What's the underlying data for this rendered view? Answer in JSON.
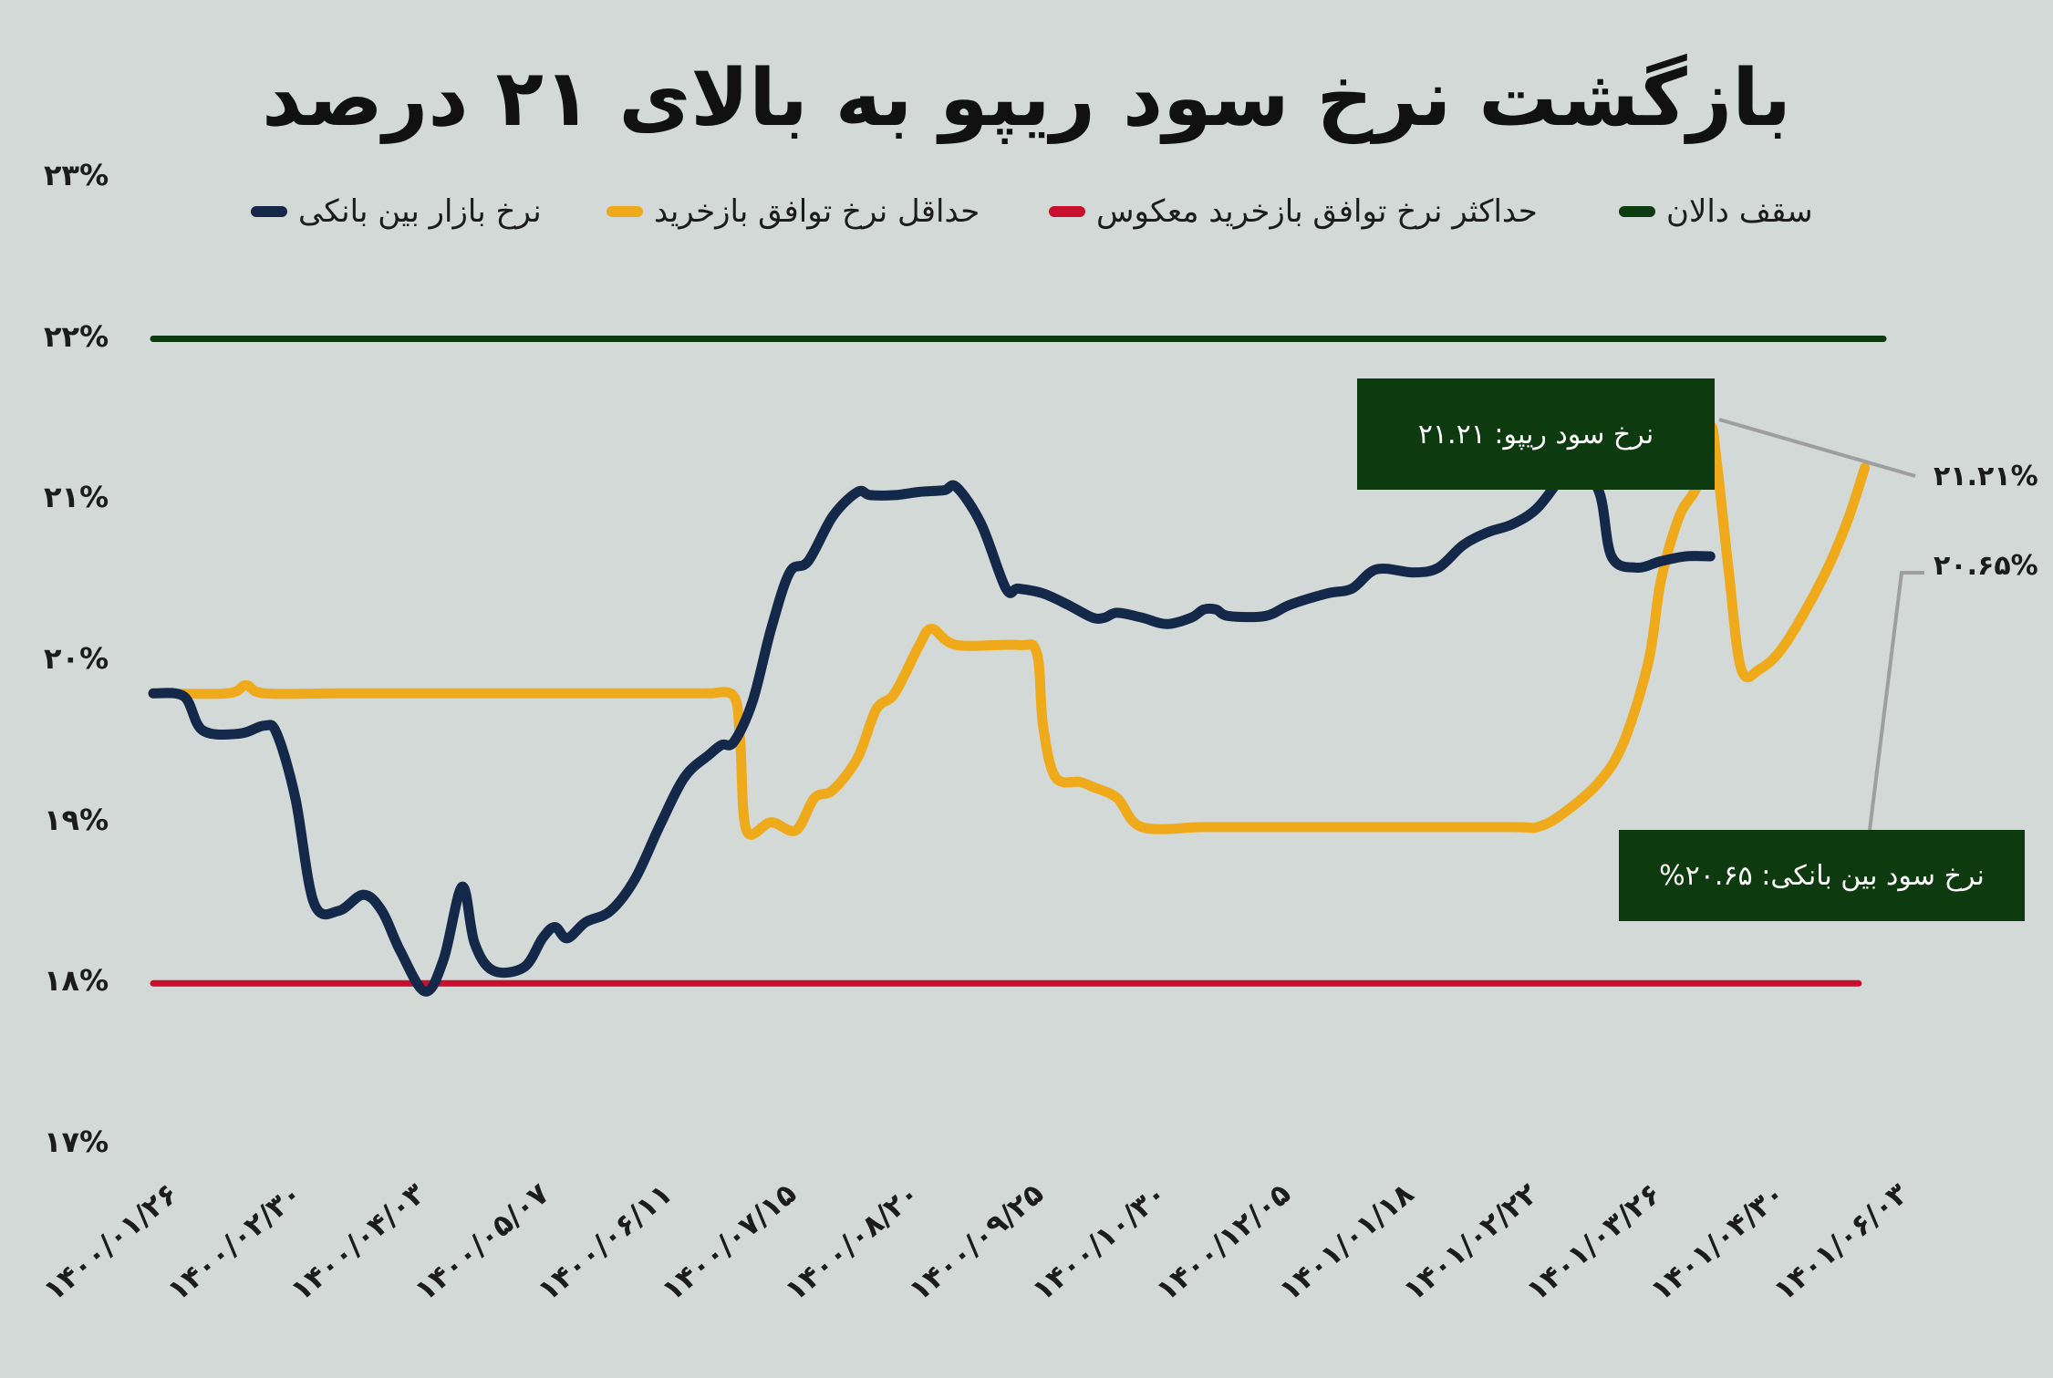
{
  "title": "بازگشت نرخ سود ریپو به بالای ۲۱ درصد",
  "legend": [
    {
      "label": "سقف دالان",
      "color": "#0b3a10"
    },
    {
      "label": "حداکثر نرخ توافق بازخرید معکوس",
      "color": "#c8102e"
    },
    {
      "label": "حداقل نرخ توافق بازخرید",
      "color": "#efaa1c"
    },
    {
      "label": "نرخ بازار بین بانکی",
      "color": "#14284a"
    }
  ],
  "callouts": {
    "repo": "نرخ سود ریپو: ۲۱.۲۱",
    "interbank": "نرخ سود بین بانکی: ۲۰.۶۵%"
  },
  "end_labels": {
    "repo": "۲۱.۲۱%",
    "interbank": "۲۰.۶۵%"
  },
  "chart_data": {
    "type": "line",
    "title": "بازگشت نرخ سود ریپو به بالای ۲۱ درصد",
    "ylim": [
      17,
      23
    ],
    "yticks": [
      "۱۷%",
      "۱۸%",
      "۱۹%",
      "۲۰%",
      "۲۱%",
      "۲۲%",
      "۲۳%"
    ],
    "xticks": [
      "۱۴۰۰/۰۱/۲۶",
      "۱۴۰۰/۰۲/۳۰",
      "۱۴۰۰/۰۴/۰۳",
      "۱۴۰۰/۰۵/۰۷",
      "۱۴۰۰/۰۶/۱۱",
      "۱۴۰۰/۰۷/۱۵",
      "۱۴۰۰/۰۸/۲۰",
      "۱۴۰۰/۰۹/۲۵",
      "۱۴۰۰/۱۰/۳۰",
      "۱۴۰۰/۱۲/۰۵",
      "۱۴۰۱/۰۱/۱۸",
      "۱۴۰۱/۰۲/۲۲",
      "۱۴۰۱/۰۳/۲۶",
      "۱۴۰۱/۰۴/۳۰",
      "۱۴۰۱/۰۶/۰۳"
    ],
    "legend_position": "top",
    "grid": false,
    "series": [
      {
        "name": "سقف دالان",
        "color": "#0b3a10",
        "points": [
          [
            0,
            22
          ],
          [
            14,
            22
          ]
        ]
      },
      {
        "name": "حداکثر نرخ توافق بازخرید معکوس",
        "color": "#c8102e",
        "points": [
          [
            0,
            18
          ],
          [
            13.8,
            18
          ]
        ]
      },
      {
        "name": "حداقل نرخ توافق بازخرید",
        "color": "#efaa1c",
        "points": [
          [
            0,
            19.8
          ],
          [
            0.6,
            19.8
          ],
          [
            0.75,
            19.85
          ],
          [
            0.9,
            19.8
          ],
          [
            1.5,
            19.8
          ],
          [
            2.5,
            19.8
          ],
          [
            3.5,
            19.8
          ],
          [
            4.4,
            19.8
          ],
          [
            4.5,
            19.8
          ],
          [
            4.7,
            19.78
          ],
          [
            4.75,
            19.5
          ],
          [
            4.8,
            18.95
          ],
          [
            5.0,
            19.0
          ],
          [
            5.2,
            18.95
          ],
          [
            5.35,
            19.15
          ],
          [
            5.5,
            19.2
          ],
          [
            5.7,
            19.4
          ],
          [
            5.85,
            19.7
          ],
          [
            6.0,
            19.8
          ],
          [
            6.2,
            20.1
          ],
          [
            6.3,
            20.2
          ],
          [
            6.5,
            20.1
          ],
          [
            7.0,
            20.1
          ],
          [
            7.15,
            20.05
          ],
          [
            7.2,
            19.6
          ],
          [
            7.3,
            19.28
          ],
          [
            7.5,
            19.25
          ],
          [
            7.6,
            19.22
          ],
          [
            7.8,
            19.15
          ],
          [
            8.0,
            18.97
          ],
          [
            8.5,
            18.97
          ],
          [
            9.0,
            18.97
          ],
          [
            10.0,
            18.97
          ],
          [
            11.0,
            18.97
          ],
          [
            11.2,
            18.97
          ],
          [
            11.4,
            19.05
          ],
          [
            11.7,
            19.25
          ],
          [
            11.9,
            19.5
          ],
          [
            12.1,
            20.0
          ],
          [
            12.2,
            20.5
          ],
          [
            12.35,
            20.9
          ],
          [
            12.5,
            21.1
          ],
          [
            12.6,
            21.45
          ],
          [
            12.65,
            21.25
          ],
          [
            12.75,
            20.55
          ],
          [
            12.85,
            19.95
          ],
          [
            13.0,
            19.95
          ],
          [
            13.2,
            20.1
          ],
          [
            13.5,
            20.5
          ],
          [
            13.7,
            20.85
          ],
          [
            13.85,
            21.2
          ]
        ]
      },
      {
        "name": "نرخ بازار بین بانکی",
        "color": "#14284a",
        "points": [
          [
            0,
            19.8
          ],
          [
            0.25,
            19.78
          ],
          [
            0.4,
            19.57
          ],
          [
            0.7,
            19.55
          ],
          [
            0.9,
            19.6
          ],
          [
            1.0,
            19.55
          ],
          [
            1.15,
            19.15
          ],
          [
            1.3,
            18.5
          ],
          [
            1.5,
            18.45
          ],
          [
            1.7,
            18.55
          ],
          [
            1.85,
            18.45
          ],
          [
            2.0,
            18.2
          ],
          [
            2.2,
            17.95
          ],
          [
            2.35,
            18.15
          ],
          [
            2.5,
            18.6
          ],
          [
            2.6,
            18.25
          ],
          [
            2.75,
            18.08
          ],
          [
            3.0,
            18.1
          ],
          [
            3.15,
            18.28
          ],
          [
            3.25,
            18.35
          ],
          [
            3.35,
            18.28
          ],
          [
            3.5,
            18.38
          ],
          [
            3.7,
            18.45
          ],
          [
            3.9,
            18.65
          ],
          [
            4.1,
            18.98
          ],
          [
            4.3,
            19.28
          ],
          [
            4.5,
            19.42
          ],
          [
            4.6,
            19.48
          ],
          [
            4.7,
            19.5
          ],
          [
            4.85,
            19.75
          ],
          [
            5.0,
            20.2
          ],
          [
            5.15,
            20.55
          ],
          [
            5.3,
            20.62
          ],
          [
            5.5,
            20.9
          ],
          [
            5.7,
            21.05
          ],
          [
            5.8,
            21.03
          ],
          [
            6.0,
            21.03
          ],
          [
            6.2,
            21.05
          ],
          [
            6.4,
            21.06
          ],
          [
            6.5,
            21.08
          ],
          [
            6.7,
            20.85
          ],
          [
            6.9,
            20.45
          ],
          [
            7.0,
            20.45
          ],
          [
            7.2,
            20.42
          ],
          [
            7.4,
            20.35
          ],
          [
            7.6,
            20.27
          ],
          [
            7.7,
            20.27
          ],
          [
            7.8,
            20.3
          ],
          [
            8.0,
            20.27
          ],
          [
            8.2,
            20.23
          ],
          [
            8.4,
            20.27
          ],
          [
            8.5,
            20.32
          ],
          [
            8.6,
            20.32
          ],
          [
            8.7,
            20.28
          ],
          [
            9.0,
            20.28
          ],
          [
            9.2,
            20.35
          ],
          [
            9.5,
            20.42
          ],
          [
            9.7,
            20.45
          ],
          [
            9.9,
            20.57
          ],
          [
            10.2,
            20.55
          ],
          [
            10.4,
            20.58
          ],
          [
            10.6,
            20.72
          ],
          [
            10.8,
            20.8
          ],
          [
            11.0,
            20.85
          ],
          [
            11.2,
            20.95
          ],
          [
            11.4,
            21.15
          ],
          [
            11.5,
            21.25
          ],
          [
            11.7,
            21.05
          ],
          [
            11.8,
            20.65
          ],
          [
            12.0,
            20.58
          ],
          [
            12.2,
            20.62
          ],
          [
            12.4,
            20.65
          ],
          [
            12.6,
            20.65
          ]
        ]
      }
    ]
  }
}
